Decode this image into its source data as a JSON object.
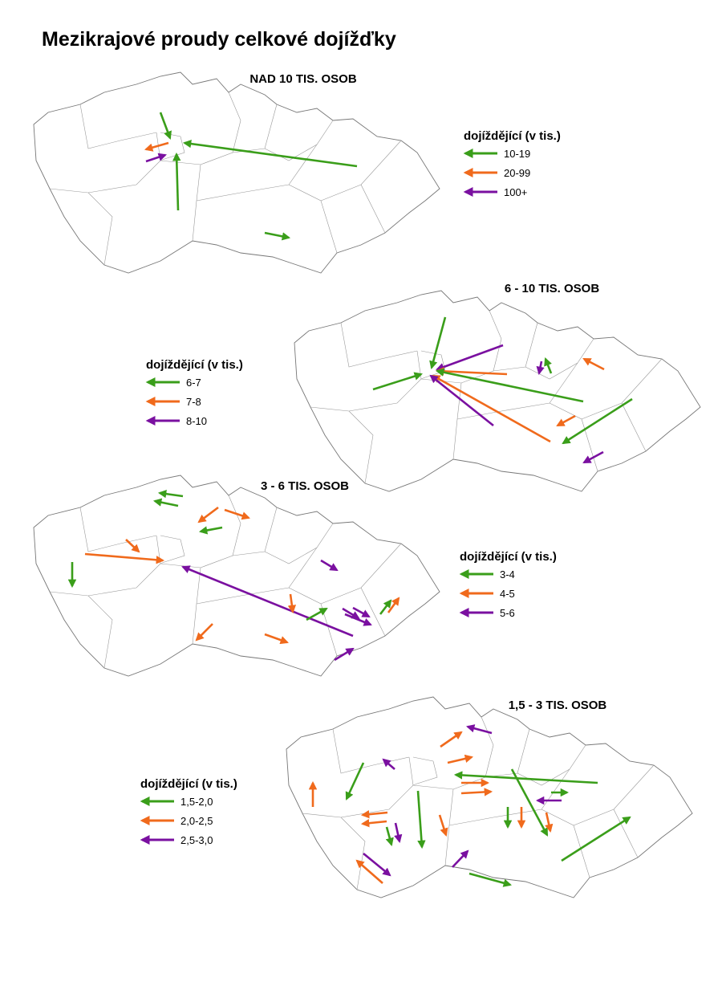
{
  "title": "Mezikrajové proudy celkové dojížďky",
  "colors": {
    "green": "#3a9e1a",
    "orange": "#f06a1c",
    "purple": "#7a10a0",
    "boundary": "#777777"
  },
  "icons": [
    "arrow-left-icon"
  ],
  "maps": [
    {
      "subtitle": "NAD 10 TIS. OSOB",
      "legend": {
        "title": "dojíždějící  (v tis.)",
        "items": [
          {
            "label": "10-19",
            "color": "green"
          },
          {
            "label": "20-99",
            "color": "orange"
          },
          {
            "label": "100+",
            "color": "purple"
          }
        ]
      }
    },
    {
      "subtitle": "6 - 10 TIS. OSOB",
      "legend": {
        "title": "dojíždějící  (v tis.)",
        "items": [
          {
            "label": "6-7",
            "color": "green"
          },
          {
            "label": "7-8",
            "color": "orange"
          },
          {
            "label": "8-10",
            "color": "purple"
          }
        ]
      }
    },
    {
      "subtitle": "3 - 6 TIS. OSOB",
      "legend": {
        "title": "dojíždějící  (v tis.)",
        "items": [
          {
            "label": "3-4",
            "color": "green"
          },
          {
            "label": "4-5",
            "color": "orange"
          },
          {
            "label": "5-6",
            "color": "purple"
          }
        ]
      }
    },
    {
      "subtitle": "1,5 - 3 TIS. OSOB",
      "legend": {
        "title": "dojíždějící  (v tis.)",
        "items": [
          {
            "label": "1,5-2,0",
            "color": "green"
          },
          {
            "label": "2,0-2,5",
            "color": "orange"
          },
          {
            "label": "2,5-3,0",
            "color": "purple"
          }
        ]
      }
    }
  ]
}
